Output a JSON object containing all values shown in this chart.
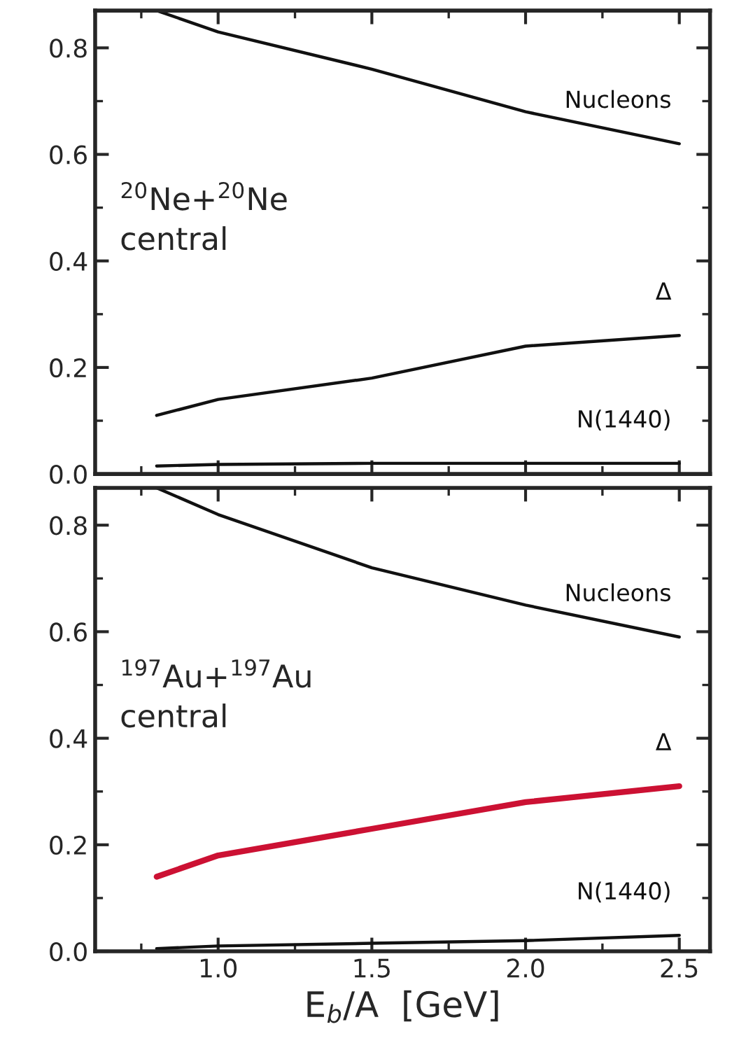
{
  "chart_data": [
    {
      "type": "line",
      "annotations": [
        "$^{20}$Ne+$^{20}$Ne\ncentral"
      ],
      "xlim": [
        0.6,
        2.6
      ],
      "ylim": [
        0,
        0.87
      ],
      "yticks": [
        {
          "value": 0,
          "label": "0.0"
        },
        0.2,
        0.4,
        0.6,
        0.8
      ],
      "tick_labels": "y",
      "marker": "none",
      "line_style": "solid",
      "legend": false,
      "grid": false,
      "x": [
        0.8,
        1.0,
        1.5,
        2.0,
        2.5
      ],
      "series": [
        {
          "name": "Nucleons",
          "color": "#111111",
          "values": [
            0.87,
            0.83,
            0.76,
            0.68,
            0.62
          ]
        },
        {
          "name": "Δ",
          "color": "#111111",
          "values": [
            0.11,
            0.14,
            0.18,
            0.24,
            0.26
          ]
        },
        {
          "name": "N(1440)",
          "color": "#111111",
          "values": [
            0.015,
            0.018,
            0.02,
            0.02,
            0.02
          ]
        }
      ]
    },
    {
      "type": "line",
      "annotations": [
        "$^{197}$Au+$^{197}$Au\ncentral"
      ],
      "xlabel": "E$_{b}$/A  [GeV]",
      "xlim": [
        0.6,
        2.6
      ],
      "ylim": [
        0,
        0.87
      ],
      "xticks": [
        {
          "value": 1,
          "label": "1.0"
        },
        1.5,
        {
          "value": 2,
          "label": "2.0"
        },
        2.5
      ],
      "yticks": [
        {
          "value": 0,
          "label": "0.0"
        },
        0.2,
        0.4,
        0.6,
        0.8
      ],
      "marker": "none",
      "line_style": "solid",
      "legend": false,
      "grid": false,
      "x": [
        0.8,
        1.0,
        1.5,
        2.0,
        2.5
      ],
      "series": [
        {
          "name": "Nucleons",
          "color": "#111111",
          "values": [
            0.87,
            0.82,
            0.72,
            0.65,
            0.59
          ]
        },
        {
          "name": "Δ",
          "color": "#cc1133",
          "values": [
            0.14,
            0.18,
            0.23,
            0.28,
            0.31
          ]
        },
        {
          "name": "N(1440)",
          "color": "#111111",
          "values": [
            0.005,
            0.01,
            0.015,
            0.02,
            0.03
          ]
        }
      ]
    }
  ]
}
